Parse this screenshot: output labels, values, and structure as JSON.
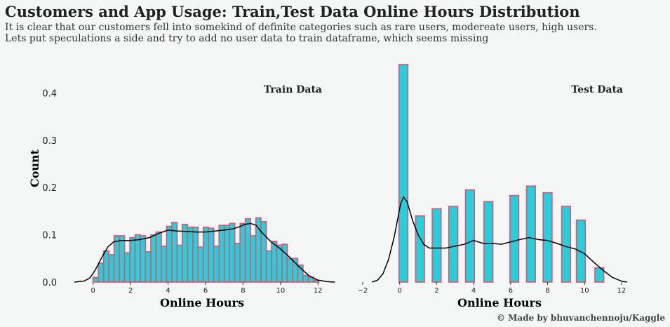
{
  "header": {
    "title": "Customers and App Usage: Train,Test Data Online Hours Distribution",
    "subtitle_line1": "It is clear that our customers fell into somekind of  definite categories such as rare users, modereate users, high users.",
    "subtitle_line2": "Lets put speculations a side and try to add no user data to train dataframe, which seems missing"
  },
  "credit": "© Made by bhuvanchennoju/Kaggle",
  "colors": {
    "bar_fill": "#22d0de",
    "bar_edge": "#e8506a",
    "kde_line": "#000000",
    "background": "#f5f6f6"
  },
  "chart_data": [
    {
      "type": "bar",
      "title": "Train Data",
      "xlabel": "Online Hours",
      "ylabel": "Count",
      "xlim": [
        -1,
        13
      ],
      "ylim": [
        0,
        0.46
      ],
      "xticks": [
        "0",
        "2",
        "4",
        "6",
        "8",
        "10",
        "12"
      ],
      "yticks": [
        "0.0",
        "0.1",
        "0.2",
        "0.3",
        "0.4"
      ],
      "bin_width": 0.28,
      "x": [
        0.14,
        0.42,
        0.7,
        0.98,
        1.26,
        1.54,
        1.82,
        2.1,
        2.38,
        2.66,
        2.94,
        3.22,
        3.5,
        3.78,
        4.06,
        4.34,
        4.62,
        4.9,
        5.18,
        5.46,
        5.74,
        6.02,
        6.3,
        6.58,
        6.86,
        7.14,
        7.42,
        7.7,
        7.98,
        8.26,
        8.54,
        8.82,
        9.1,
        9.38,
        9.66,
        9.94,
        10.22,
        10.5,
        10.78,
        11.06,
        11.34,
        11.62,
        11.9
      ],
      "values": [
        0.01,
        0.04,
        0.066,
        0.058,
        0.098,
        0.098,
        0.062,
        0.094,
        0.1,
        0.098,
        0.064,
        0.1,
        0.106,
        0.076,
        0.118,
        0.126,
        0.078,
        0.122,
        0.116,
        0.116,
        0.074,
        0.116,
        0.114,
        0.076,
        0.12,
        0.12,
        0.124,
        0.082,
        0.124,
        0.134,
        0.098,
        0.136,
        0.128,
        0.066,
        0.086,
        0.078,
        0.08,
        0.05,
        0.05,
        0.036,
        0.014,
        0.01,
        0.004
      ],
      "kde": {
        "x": [
          -1,
          -0.5,
          -0.2,
          0,
          0.2,
          0.5,
          0.8,
          1.1,
          1.5,
          2,
          2.5,
          3,
          3.5,
          4,
          4.5,
          5,
          5.5,
          6,
          6.5,
          7,
          7.5,
          7.8,
          8.1,
          8.4,
          8.7,
          9,
          9.5,
          10,
          10.5,
          11,
          11.5,
          12,
          12.5,
          12.9
        ],
        "y": [
          0,
          0.002,
          0.008,
          0.018,
          0.032,
          0.055,
          0.075,
          0.085,
          0.088,
          0.088,
          0.09,
          0.094,
          0.103,
          0.11,
          0.108,
          0.107,
          0.106,
          0.106,
          0.108,
          0.11,
          0.113,
          0.117,
          0.122,
          0.124,
          0.12,
          0.105,
          0.085,
          0.07,
          0.052,
          0.032,
          0.014,
          0.004,
          0.001,
          0
        ]
      }
    },
    {
      "type": "bar",
      "title": "Test Data",
      "xlabel": "Online Hours",
      "ylabel": "",
      "xlim": [
        -2,
        12.8
      ],
      "ylim": [
        0,
        0.46
      ],
      "xticks": [
        "−2",
        "0",
        "2",
        "4",
        "6",
        "8",
        "10",
        "12"
      ],
      "bin_width": 0.48,
      "x": [
        0.2,
        1.1,
        2.0,
        2.9,
        3.8,
        4.8,
        6.2,
        7.1,
        8.0,
        9.0,
        9.8,
        10.8
      ],
      "values": [
        0.46,
        0.14,
        0.155,
        0.16,
        0.195,
        0.17,
        0.183,
        0.203,
        0.189,
        0.16,
        0.131,
        0.03
      ],
      "kde": {
        "x": [
          -1.5,
          -1.2,
          -0.9,
          -0.6,
          -0.3,
          -0.1,
          0.05,
          0.2,
          0.4,
          0.7,
          1.0,
          1.3,
          1.6,
          2.0,
          2.5,
          3.0,
          3.5,
          4.0,
          4.5,
          5.0,
          5.5,
          6.0,
          6.5,
          7.0,
          7.5,
          8.0,
          8.5,
          9.0,
          9.5,
          10.0,
          10.5,
          11.0,
          11.5,
          12.0,
          12.3
        ],
        "y": [
          0,
          0.004,
          0.018,
          0.048,
          0.095,
          0.135,
          0.165,
          0.18,
          0.17,
          0.13,
          0.1,
          0.08,
          0.072,
          0.072,
          0.072,
          0.076,
          0.08,
          0.088,
          0.082,
          0.082,
          0.08,
          0.085,
          0.09,
          0.094,
          0.09,
          0.088,
          0.082,
          0.075,
          0.07,
          0.06,
          0.042,
          0.025,
          0.01,
          0.002,
          0
        ]
      }
    }
  ]
}
